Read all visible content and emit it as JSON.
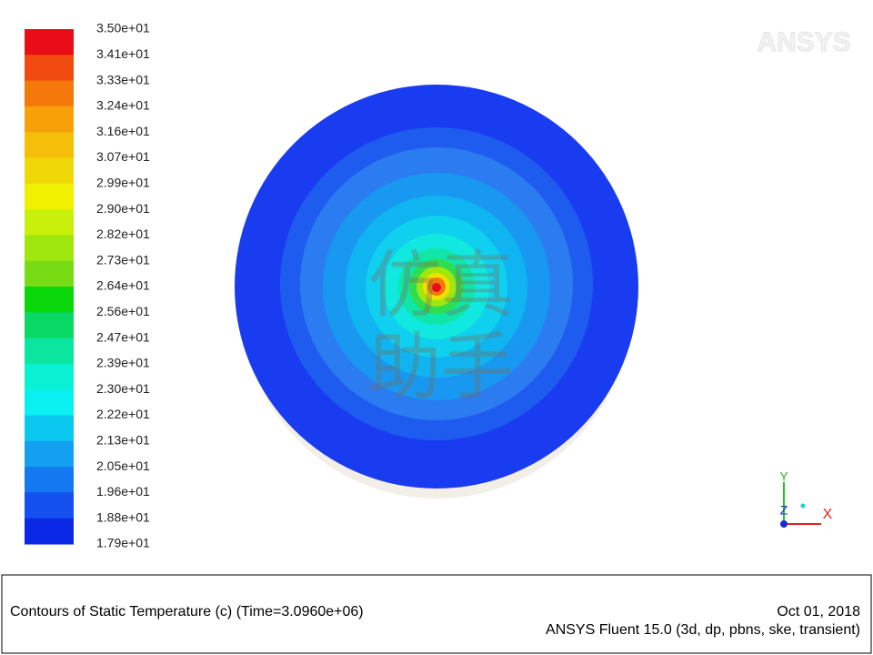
{
  "colorbar": {
    "labels": [
      "3.50e+01",
      "3.41e+01",
      "3.33e+01",
      "3.24e+01",
      "3.16e+01",
      "3.07e+01",
      "2.99e+01",
      "2.90e+01",
      "2.82e+01",
      "2.73e+01",
      "2.64e+01",
      "2.56e+01",
      "2.47e+01",
      "2.39e+01",
      "2.30e+01",
      "2.22e+01",
      "2.13e+01",
      "2.05e+01",
      "1.96e+01",
      "1.88e+01",
      "1.79e+01"
    ],
    "colors": [
      "#e80d17",
      "#f04a10",
      "#f5780a",
      "#f7a008",
      "#f5be08",
      "#f0d808",
      "#f0f000",
      "#c8f00a",
      "#a0e60f",
      "#78dc14",
      "#0ad80a",
      "#0ad864",
      "#0ae6a0",
      "#0af0d2",
      "#0af0f0",
      "#0ac8f0",
      "#14a0f0",
      "#1478f0",
      "#1450f0",
      "#0a28e6"
    ]
  },
  "logo": "ANSYS",
  "watermark": [
    "仿真",
    "助手"
  ],
  "axes": {
    "y": "Y",
    "z": "Z",
    "x": "X"
  },
  "footer": {
    "title": "Contours of Static Temperature (c)  (Time=3.0960e+06)",
    "date": "Oct 01, 2018",
    "software": "ANSYS Fluent 15.0 (3d, dp, pbns, ske, transient)"
  }
}
